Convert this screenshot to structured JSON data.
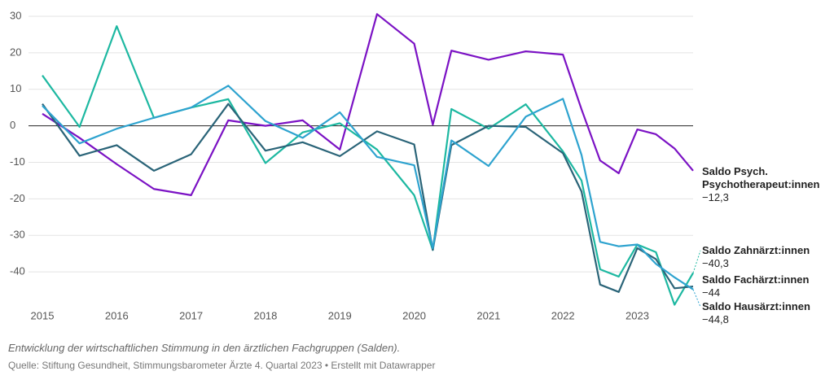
{
  "chart_data": {
    "type": "line",
    "caption": "Entwicklung der wirtschaftlichen Stimmung in den ärztlichen Fachgruppen (Salden).",
    "source": "Quelle: Stiftung Gesundheit, Stimmungsbarometer Ärzte 4. Quartal 2023 • Erstellt mit Datawrapper",
    "x": [
      2015,
      2015.5,
      2016,
      2016.5,
      2017,
      2017.5,
      2018,
      2018.5,
      2019,
      2019.5,
      2020,
      2020.25,
      2020.5,
      2021,
      2021.5,
      2022,
      2022.25,
      2022.5,
      2022.75,
      2023,
      2023.25,
      2023.5,
      2023.75
    ],
    "xlim": [
      2015,
      2023.75
    ],
    "xticks": [
      2015,
      2016,
      2017,
      2018,
      2019,
      2020,
      2021,
      2022,
      2023
    ],
    "ylim": [
      -50,
      30
    ],
    "yticks": [
      -40,
      -30,
      -20,
      -10,
      0,
      10,
      20,
      30
    ],
    "grid": true,
    "series": [
      {
        "name": "Saldo Psych. Psychotherapeut:innen",
        "color": "#7b12c4",
        "values": [
          3.3,
          -3.3,
          -10.5,
          -17.3,
          -19,
          1.5,
          0,
          1.5,
          -6.5,
          30.6,
          22.5,
          0.3,
          20.6,
          18.1,
          20.4,
          19.5,
          4.5,
          -9.5,
          -13,
          -1,
          -2.3,
          -6.2,
          -12.3
        ],
        "value_labels": [
          null,
          null,
          null,
          null,
          null,
          null,
          null,
          null,
          null,
          null,
          null,
          null,
          null,
          null,
          null,
          null,
          null,
          null,
          null,
          null,
          null,
          null,
          "−12,3"
        ]
      },
      {
        "name": "Saldo Zahnärzt:innen",
        "color": "#1db8a1",
        "values": [
          13.8,
          -0.3,
          27.3,
          2.2,
          5,
          7.3,
          -10.2,
          -1.8,
          0.7,
          -6.5,
          -19,
          -34,
          4.6,
          -0.8,
          5.9,
          -7,
          -15,
          -39.3,
          -41.3,
          -32.5,
          -34.6,
          -49,
          -40.3
        ],
        "value_labels": [
          null,
          null,
          null,
          null,
          null,
          null,
          null,
          null,
          null,
          null,
          null,
          null,
          null,
          null,
          null,
          null,
          null,
          null,
          null,
          null,
          null,
          null,
          "−40,3"
        ]
      },
      {
        "name": "Saldo Fachärzt:innen",
        "color": "#2a6478",
        "values": [
          6,
          -8.2,
          -5.3,
          -12.3,
          -7.8,
          6,
          -6.8,
          -4.5,
          -8.3,
          -1.5,
          -5.1,
          -34,
          -5.3,
          0,
          -0.3,
          -7.5,
          -18,
          -43.5,
          -45.5,
          -33.5,
          -36.5,
          -44.5,
          -44
        ],
        "value_labels": [
          null,
          null,
          null,
          null,
          null,
          null,
          null,
          null,
          null,
          null,
          null,
          null,
          null,
          null,
          null,
          null,
          null,
          null,
          null,
          null,
          null,
          null,
          "−44"
        ]
      },
      {
        "name": "Saldo Hausärzt:innen",
        "color": "#2ea3cf",
        "values": [
          5.5,
          -4.8,
          -0.8,
          2.2,
          5,
          11,
          1.3,
          -3.3,
          3.7,
          -8.5,
          -10.8,
          -33.5,
          -4,
          -11,
          2.5,
          7.4,
          -8,
          -31.8,
          -33,
          -32.5,
          -37.8,
          -41.5,
          -44.8
        ],
        "value_labels": [
          null,
          null,
          null,
          null,
          null,
          null,
          null,
          null,
          null,
          null,
          null,
          null,
          null,
          null,
          null,
          null,
          null,
          null,
          null,
          null,
          null,
          null,
          "−44,8"
        ]
      }
    ]
  }
}
